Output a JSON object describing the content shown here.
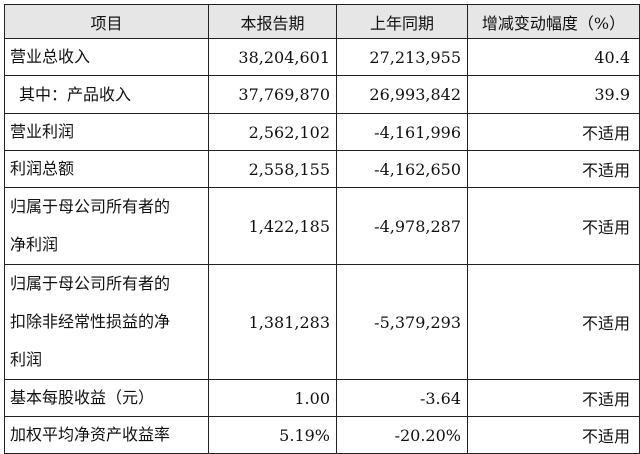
{
  "header": {
    "item": "项目",
    "current": "本报告期",
    "prior": "上年同期",
    "change": "增减变动幅度（%）"
  },
  "rows": [
    {
      "label": "营业总收入",
      "current": "38,204,601",
      "prior": "27,213,955",
      "change": "40.4"
    },
    {
      "label": "其中：产品收入",
      "current": "37,769,870",
      "prior": "26,993,842",
      "change": "39.9"
    },
    {
      "label": "营业利润",
      "current": "2,562,102",
      "prior": "-4,161,996",
      "change": "不适用"
    },
    {
      "label": "利润总额",
      "current": "2,558,155",
      "prior": "-4,162,650",
      "change": "不适用"
    },
    {
      "label_lines": [
        "归属于母公司所有者的",
        "净利润"
      ],
      "current": "1,422,185",
      "prior": "-4,978,287",
      "change": "不适用"
    },
    {
      "label_lines": [
        "归属于母公司所有者的",
        "扣除非经常性损益的净",
        "利润"
      ],
      "current": "1,381,283",
      "prior": "-5,379,293",
      "change": "不适用"
    },
    {
      "label": "基本每股收益（元）",
      "current": "1.00",
      "prior": "-3.64",
      "change": "不适用"
    },
    {
      "label": "加权平均净资产收益率",
      "current": "5.19%",
      "prior": "-20.20%",
      "change": "不适用"
    }
  ]
}
